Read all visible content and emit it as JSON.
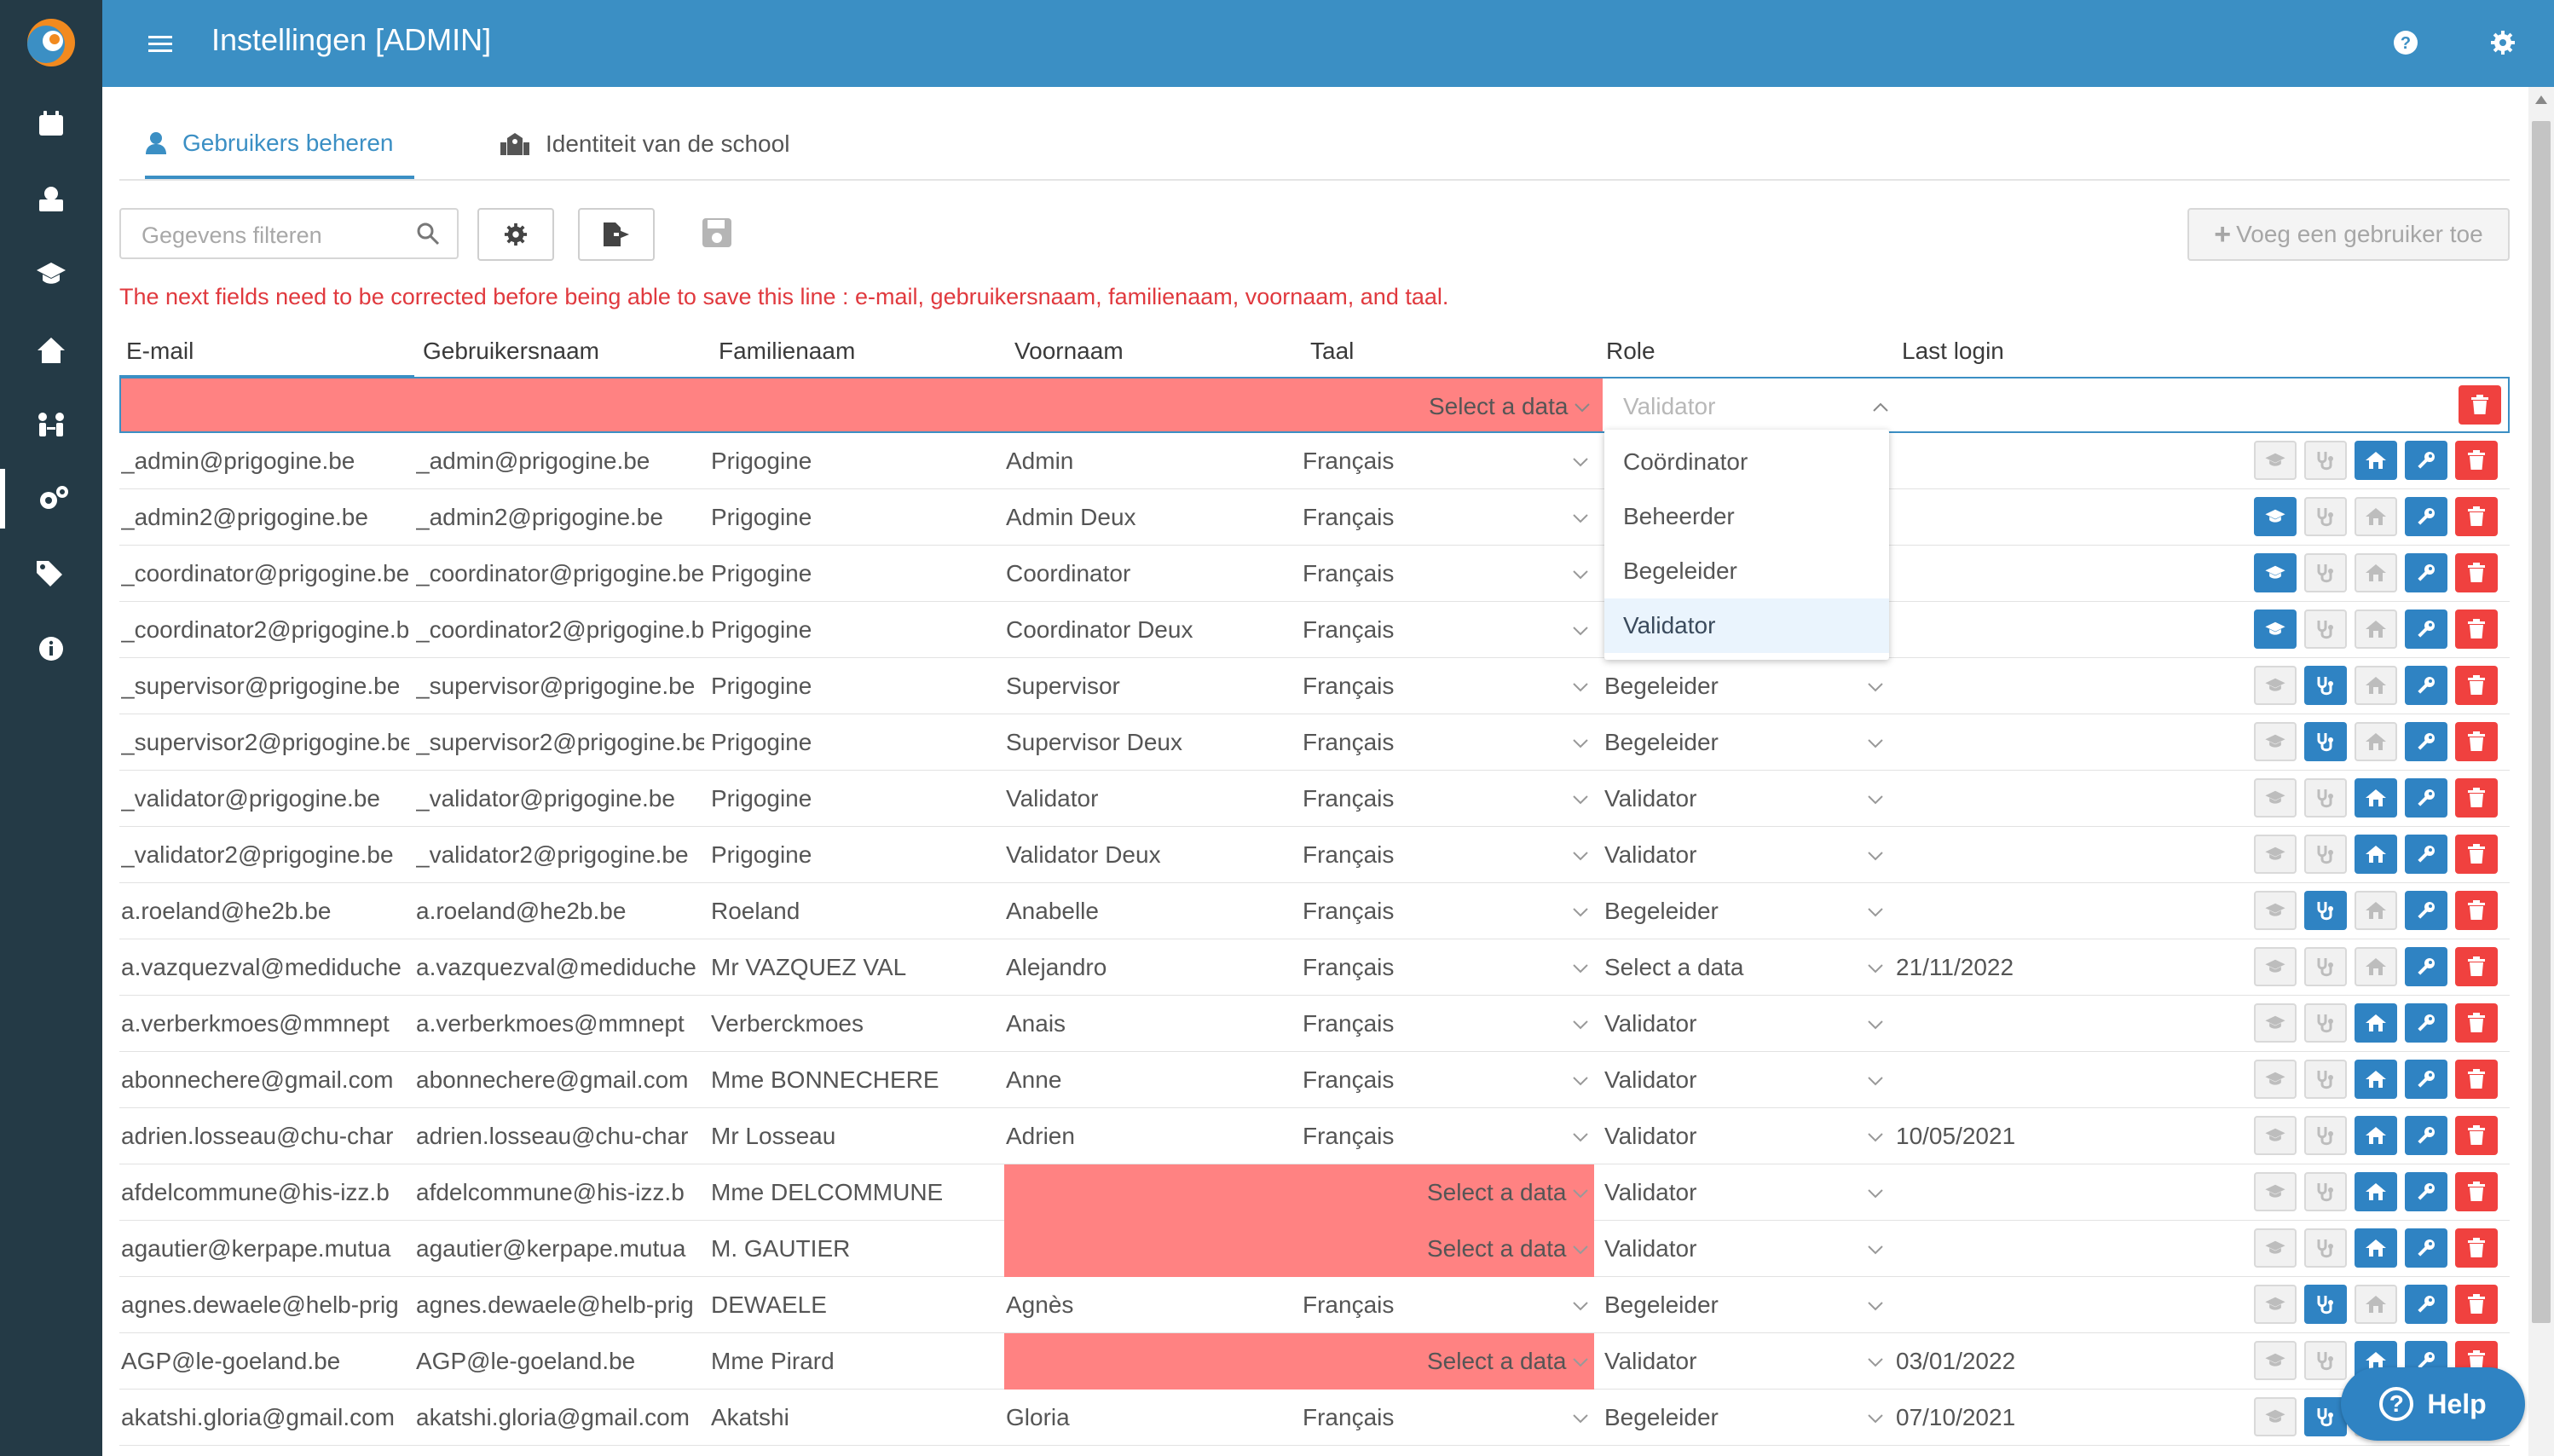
{
  "app": {
    "title": "Instellingen [ADMIN]"
  },
  "tabs": [
    {
      "label": "Gebruikers beheren",
      "icon": "user-icon",
      "active": true
    },
    {
      "label": "Identiteit van de school",
      "icon": "school-icon",
      "active": false
    }
  ],
  "toolbar": {
    "filter_placeholder": "Gegevens filteren",
    "add_user_label": "Voeg een gebruiker toe",
    "add_user_plus": "+"
  },
  "error_message": "The next fields need to be corrected before being able to save this line : e-mail, gebruikersnaam, familienaam, voornaam, and taal.",
  "columns": [
    "E-mail",
    "Gebruikersnaam",
    "Familienaam",
    "Voornaam",
    "Taal",
    "Role",
    "Last login"
  ],
  "editing_row": {
    "taal": "Select a data",
    "role_placeholder": "Validator"
  },
  "role_dropdown": {
    "options": [
      "Coördinator",
      "Beheerder",
      "Begeleider",
      "Validator"
    ],
    "selected": "Validator"
  },
  "rows": [
    {
      "email": "_admin@prigogine.be",
      "username": "_admin@prigogine.be",
      "lastname": "Prigogine",
      "firstname": "Admin",
      "taal": "Français",
      "role": "",
      "last_login": "",
      "actions": [
        0,
        0,
        1,
        1,
        1
      ]
    },
    {
      "email": "_admin2@prigogine.be",
      "username": "_admin2@prigogine.be",
      "lastname": "Prigogine",
      "firstname": "Admin Deux",
      "taal": "Français",
      "role": "",
      "last_login": "",
      "actions": [
        1,
        0,
        0,
        1,
        1
      ]
    },
    {
      "email": "_coordinator@prigogine.be",
      "username": "_coordinator@prigogine.be",
      "lastname": "Prigogine",
      "firstname": "Coordinator",
      "taal": "Français",
      "role": "",
      "last_login": "",
      "actions": [
        1,
        0,
        0,
        1,
        1
      ]
    },
    {
      "email": "_coordinator2@prigogine.be",
      "username": "_coordinator2@prigogine.be",
      "lastname": "Prigogine",
      "firstname": "Coordinator Deux",
      "taal": "Français",
      "role": "",
      "last_login": "",
      "actions": [
        1,
        0,
        0,
        1,
        1
      ]
    },
    {
      "email": "_supervisor@prigogine.be",
      "username": "_supervisor@prigogine.be",
      "lastname": "Prigogine",
      "firstname": "Supervisor",
      "taal": "Français",
      "role": "Begeleider",
      "last_login": "",
      "actions": [
        0,
        1,
        0,
        1,
        1
      ]
    },
    {
      "email": "_supervisor2@prigogine.be",
      "username": "_supervisor2@prigogine.be",
      "lastname": "Prigogine",
      "firstname": "Supervisor Deux",
      "taal": "Français",
      "role": "Begeleider",
      "last_login": "",
      "actions": [
        0,
        1,
        0,
        1,
        1
      ]
    },
    {
      "email": "_validator@prigogine.be",
      "username": "_validator@prigogine.be",
      "lastname": "Prigogine",
      "firstname": "Validator",
      "taal": "Français",
      "role": "Validator",
      "last_login": "",
      "actions": [
        0,
        0,
        1,
        1,
        1
      ]
    },
    {
      "email": "_validator2@prigogine.be",
      "username": "_validator2@prigogine.be",
      "lastname": "Prigogine",
      "firstname": "Validator Deux",
      "taal": "Français",
      "role": "Validator",
      "last_login": "",
      "actions": [
        0,
        0,
        1,
        1,
        1
      ]
    },
    {
      "email": "a.roeland@he2b.be",
      "username": "a.roeland@he2b.be",
      "lastname": "Roeland",
      "firstname": "Anabelle",
      "taal": "Français",
      "role": "Begeleider",
      "last_login": "",
      "actions": [
        0,
        1,
        0,
        1,
        1
      ]
    },
    {
      "email": "a.vazquezval@mediduche",
      "username": "a.vazquezval@mediduche",
      "lastname": "Mr VAZQUEZ VAL",
      "firstname": "Alejandro",
      "taal": "Français",
      "role": "Select a data",
      "last_login": "21/11/2022",
      "actions": [
        0,
        0,
        0,
        1,
        1
      ]
    },
    {
      "email": "a.verberkmoes@mmnept",
      "username": "a.verberkmoes@mmnept",
      "lastname": "Verberckmoes",
      "firstname": "Anais",
      "taal": "Français",
      "role": "Validator",
      "last_login": "",
      "actions": [
        0,
        0,
        1,
        1,
        1
      ]
    },
    {
      "email": "abonnechere@gmail.com",
      "username": "abonnechere@gmail.com",
      "lastname": "Mme BONNECHERE",
      "firstname": "Anne",
      "taal": "Français",
      "role": "Validator",
      "last_login": "",
      "actions": [
        0,
        0,
        1,
        1,
        1
      ]
    },
    {
      "email": "adrien.losseau@chu-char",
      "username": "adrien.losseau@chu-char",
      "lastname": "Mr Losseau",
      "firstname": "Adrien",
      "taal": "Français",
      "role": "Validator",
      "last_login": "10/05/2021",
      "actions": [
        0,
        0,
        1,
        1,
        1
      ]
    },
    {
      "email": "afdelcommune@his-izz.b",
      "username": "afdelcommune@his-izz.b",
      "lastname": "Mme DELCOMMUNE",
      "firstname": "",
      "taal": "Select a data",
      "role": "Validator",
      "last_login": "",
      "actions": [
        0,
        0,
        1,
        1,
        1
      ]
    },
    {
      "email": "agautier@kerpape.mutua",
      "username": "agautier@kerpape.mutua",
      "lastname": "M. GAUTIER",
      "firstname": "",
      "taal": "Select a data",
      "role": "Validator",
      "last_login": "",
      "actions": [
        0,
        0,
        1,
        1,
        1
      ]
    },
    {
      "email": "agnes.dewaele@helb-prig",
      "username": "agnes.dewaele@helb-prig",
      "lastname": "DEWAELE",
      "firstname": "Agnès",
      "taal": "Français",
      "role": "Begeleider",
      "last_login": "",
      "actions": [
        0,
        1,
        0,
        1,
        1
      ]
    },
    {
      "email": "AGP@le-goeland.be",
      "username": "AGP@le-goeland.be",
      "lastname": "Mme Pirard",
      "firstname": "",
      "taal": "Select a data",
      "role": "Validator",
      "last_login": "03/01/2022",
      "actions": [
        0,
        0,
        1,
        1,
        1
      ]
    },
    {
      "email": "akatshi.gloria@gmail.com",
      "username": "akatshi.gloria@gmail.com",
      "lastname": "Akatshi",
      "firstname": "Gloria",
      "taal": "Français",
      "role": "Begeleider",
      "last_login": "07/10/2021",
      "actions": [
        0,
        1,
        0,
        1,
        1
      ]
    }
  ],
  "help_label": "Help",
  "colors": {
    "topbar": "#3b8fc4",
    "rail": "#243a46",
    "error": "#ff8282",
    "action_on": "#2f83c3",
    "delete": "#f0413f",
    "error_text": "#e0393e"
  }
}
